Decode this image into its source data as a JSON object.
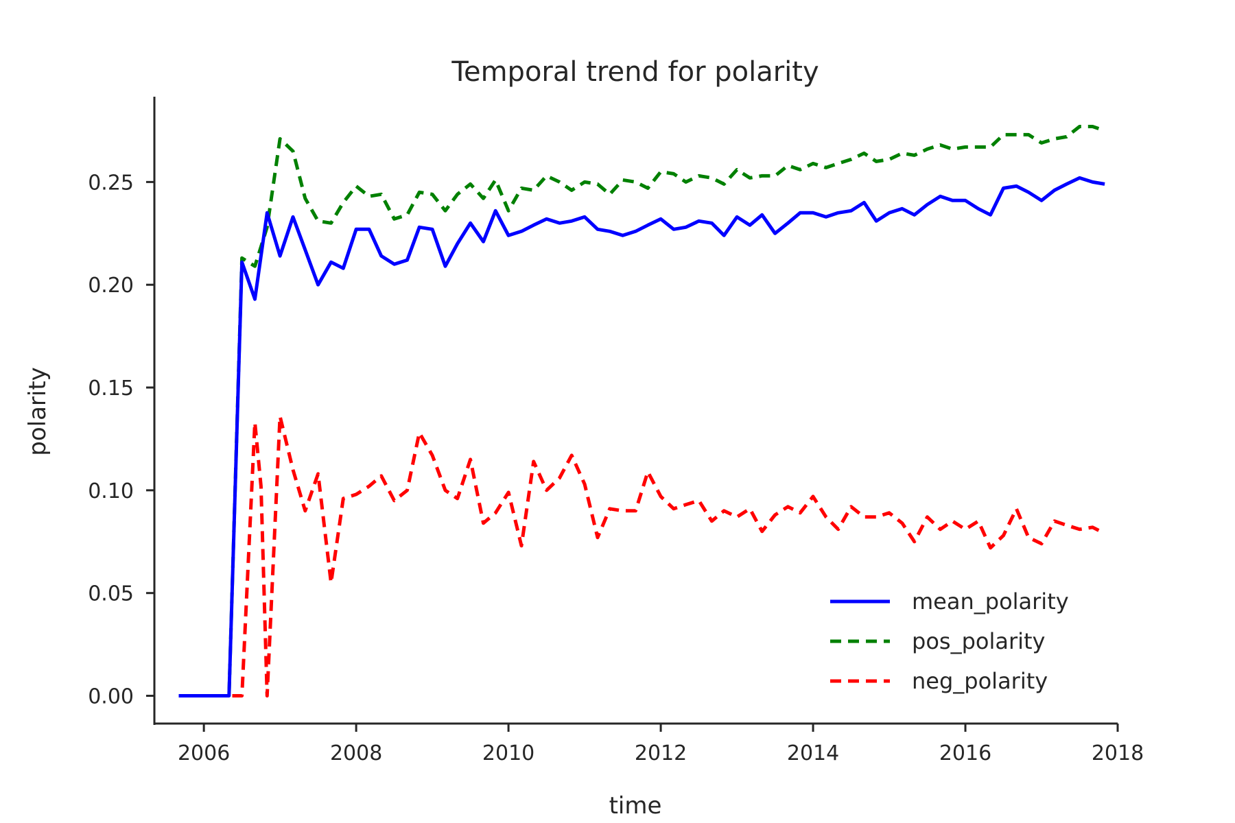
{
  "chart_data": {
    "type": "line",
    "title": "Temporal trend for polarity",
    "xlabel": "time",
    "ylabel": "polarity",
    "xlim": [
      2005.35,
      2018.0
    ],
    "ylim": [
      -0.0135,
      0.2915
    ],
    "x_ticks": [
      2006,
      2008,
      2010,
      2012,
      2014,
      2016,
      2018
    ],
    "y_ticks": [
      0.0,
      0.05,
      0.1,
      0.15,
      0.2,
      0.25
    ],
    "x_tick_labels": [
      "2006",
      "2008",
      "2010",
      "2012",
      "2014",
      "2016",
      "2018"
    ],
    "y_tick_labels": [
      "0.00",
      "0.05",
      "0.10",
      "0.15",
      "0.20",
      "0.25"
    ],
    "grid": false,
    "legend_position": "lower-right",
    "series": [
      {
        "name": "mean_polarity",
        "color": "#0000ff",
        "style": "solid",
        "points": [
          [
            2005.67,
            0.0
          ],
          [
            2005.83,
            0.0
          ],
          [
            2006.0,
            0.0
          ],
          [
            2006.17,
            0.0
          ],
          [
            2006.33,
            0.0
          ],
          [
            2006.5,
            0.211
          ],
          [
            2006.67,
            0.193
          ],
          [
            2006.83,
            0.235
          ],
          [
            2007.0,
            0.214
          ],
          [
            2007.17,
            0.233
          ],
          [
            2007.33,
            0.217
          ],
          [
            2007.5,
            0.2
          ],
          [
            2007.67,
            0.211
          ],
          [
            2007.83,
            0.208
          ],
          [
            2008.0,
            0.227
          ],
          [
            2008.17,
            0.227
          ],
          [
            2008.33,
            0.214
          ],
          [
            2008.5,
            0.21
          ],
          [
            2008.67,
            0.212
          ],
          [
            2008.83,
            0.228
          ],
          [
            2009.0,
            0.227
          ],
          [
            2009.17,
            0.209
          ],
          [
            2009.33,
            0.22
          ],
          [
            2009.5,
            0.23
          ],
          [
            2009.67,
            0.221
          ],
          [
            2009.83,
            0.236
          ],
          [
            2010.0,
            0.224
          ],
          [
            2010.17,
            0.226
          ],
          [
            2010.33,
            0.229
          ],
          [
            2010.5,
            0.232
          ],
          [
            2010.67,
            0.23
          ],
          [
            2010.83,
            0.231
          ],
          [
            2011.0,
            0.233
          ],
          [
            2011.17,
            0.227
          ],
          [
            2011.33,
            0.226
          ],
          [
            2011.5,
            0.224
          ],
          [
            2011.67,
            0.226
          ],
          [
            2011.83,
            0.229
          ],
          [
            2012.0,
            0.232
          ],
          [
            2012.17,
            0.227
          ],
          [
            2012.33,
            0.228
          ],
          [
            2012.5,
            0.231
          ],
          [
            2012.67,
            0.23
          ],
          [
            2012.83,
            0.224
          ],
          [
            2013.0,
            0.233
          ],
          [
            2013.17,
            0.229
          ],
          [
            2013.33,
            0.234
          ],
          [
            2013.5,
            0.225
          ],
          [
            2013.67,
            0.23
          ],
          [
            2013.83,
            0.235
          ],
          [
            2014.0,
            0.235
          ],
          [
            2014.17,
            0.233
          ],
          [
            2014.33,
            0.235
          ],
          [
            2014.5,
            0.236
          ],
          [
            2014.67,
            0.24
          ],
          [
            2014.83,
            0.231
          ],
          [
            2015.0,
            0.235
          ],
          [
            2015.17,
            0.237
          ],
          [
            2015.33,
            0.234
          ],
          [
            2015.5,
            0.239
          ],
          [
            2015.67,
            0.243
          ],
          [
            2015.83,
            0.241
          ],
          [
            2016.0,
            0.241
          ],
          [
            2016.17,
            0.237
          ],
          [
            2016.33,
            0.234
          ],
          [
            2016.5,
            0.247
          ],
          [
            2016.67,
            0.248
          ],
          [
            2016.83,
            0.245
          ],
          [
            2017.0,
            0.241
          ],
          [
            2017.17,
            0.246
          ],
          [
            2017.33,
            0.249
          ],
          [
            2017.5,
            0.252
          ],
          [
            2017.67,
            0.25
          ],
          [
            2017.83,
            0.249
          ]
        ]
      },
      {
        "name": "pos_polarity",
        "color": "#008000",
        "style": "dashed",
        "points": [
          [
            2005.67,
            0.0
          ],
          [
            2005.83,
            0.0
          ],
          [
            2006.0,
            0.0
          ],
          [
            2006.17,
            0.0
          ],
          [
            2006.33,
            0.0
          ],
          [
            2006.5,
            0.213
          ],
          [
            2006.67,
            0.209
          ],
          [
            2006.83,
            0.228
          ],
          [
            2007.0,
            0.271
          ],
          [
            2007.17,
            0.265
          ],
          [
            2007.33,
            0.242
          ],
          [
            2007.5,
            0.231
          ],
          [
            2007.67,
            0.23
          ],
          [
            2007.83,
            0.24
          ],
          [
            2008.0,
            0.248
          ],
          [
            2008.17,
            0.243
          ],
          [
            2008.33,
            0.244
          ],
          [
            2008.5,
            0.232
          ],
          [
            2008.67,
            0.234
          ],
          [
            2008.83,
            0.245
          ],
          [
            2009.0,
            0.244
          ],
          [
            2009.17,
            0.236
          ],
          [
            2009.33,
            0.244
          ],
          [
            2009.5,
            0.249
          ],
          [
            2009.67,
            0.242
          ],
          [
            2009.83,
            0.251
          ],
          [
            2010.0,
            0.236
          ],
          [
            2010.17,
            0.247
          ],
          [
            2010.33,
            0.246
          ],
          [
            2010.5,
            0.253
          ],
          [
            2010.67,
            0.25
          ],
          [
            2010.83,
            0.246
          ],
          [
            2011.0,
            0.25
          ],
          [
            2011.17,
            0.249
          ],
          [
            2011.33,
            0.244
          ],
          [
            2011.5,
            0.251
          ],
          [
            2011.67,
            0.25
          ],
          [
            2011.83,
            0.247
          ],
          [
            2012.0,
            0.255
          ],
          [
            2012.17,
            0.254
          ],
          [
            2012.33,
            0.25
          ],
          [
            2012.5,
            0.253
          ],
          [
            2012.67,
            0.252
          ],
          [
            2012.83,
            0.249
          ],
          [
            2013.0,
            0.256
          ],
          [
            2013.17,
            0.252
          ],
          [
            2013.33,
            0.253
          ],
          [
            2013.5,
            0.253
          ],
          [
            2013.67,
            0.258
          ],
          [
            2013.83,
            0.256
          ],
          [
            2014.0,
            0.259
          ],
          [
            2014.17,
            0.257
          ],
          [
            2014.33,
            0.259
          ],
          [
            2014.5,
            0.261
          ],
          [
            2014.67,
            0.264
          ],
          [
            2014.83,
            0.26
          ],
          [
            2015.0,
            0.261
          ],
          [
            2015.17,
            0.264
          ],
          [
            2015.33,
            0.263
          ],
          [
            2015.5,
            0.266
          ],
          [
            2015.67,
            0.268
          ],
          [
            2015.83,
            0.266
          ],
          [
            2016.0,
            0.267
          ],
          [
            2016.17,
            0.267
          ],
          [
            2016.33,
            0.267
          ],
          [
            2016.5,
            0.273
          ],
          [
            2016.67,
            0.273
          ],
          [
            2016.83,
            0.273
          ],
          [
            2017.0,
            0.269
          ],
          [
            2017.17,
            0.271
          ],
          [
            2017.33,
            0.272
          ],
          [
            2017.5,
            0.277
          ],
          [
            2017.67,
            0.277
          ],
          [
            2017.83,
            0.275
          ]
        ]
      },
      {
        "name": "neg_polarity",
        "color": "#ff0000",
        "style": "dashed",
        "points": [
          [
            2005.67,
            0.0
          ],
          [
            2005.83,
            0.0
          ],
          [
            2006.0,
            0.0
          ],
          [
            2006.17,
            0.0
          ],
          [
            2006.33,
            0.0
          ],
          [
            2006.5,
            0.0
          ],
          [
            2006.67,
            0.133
          ],
          [
            2006.75,
            0.102
          ],
          [
            2006.83,
            0.0
          ],
          [
            2007.0,
            0.136
          ],
          [
            2007.17,
            0.11
          ],
          [
            2007.33,
            0.09
          ],
          [
            2007.5,
            0.108
          ],
          [
            2007.67,
            0.055
          ],
          [
            2007.83,
            0.096
          ],
          [
            2008.0,
            0.098
          ],
          [
            2008.17,
            0.102
          ],
          [
            2008.33,
            0.107
          ],
          [
            2008.5,
            0.095
          ],
          [
            2008.67,
            0.1
          ],
          [
            2008.83,
            0.128
          ],
          [
            2009.0,
            0.117
          ],
          [
            2009.17,
            0.1
          ],
          [
            2009.33,
            0.096
          ],
          [
            2009.5,
            0.115
          ],
          [
            2009.67,
            0.084
          ],
          [
            2009.83,
            0.089
          ],
          [
            2010.0,
            0.099
          ],
          [
            2010.17,
            0.073
          ],
          [
            2010.33,
            0.114
          ],
          [
            2010.5,
            0.1
          ],
          [
            2010.67,
            0.106
          ],
          [
            2010.83,
            0.117
          ],
          [
            2011.0,
            0.103
          ],
          [
            2011.17,
            0.077
          ],
          [
            2011.33,
            0.091
          ],
          [
            2011.5,
            0.09
          ],
          [
            2011.67,
            0.09
          ],
          [
            2011.83,
            0.109
          ],
          [
            2012.0,
            0.097
          ],
          [
            2012.17,
            0.091
          ],
          [
            2012.33,
            0.093
          ],
          [
            2012.5,
            0.095
          ],
          [
            2012.67,
            0.085
          ],
          [
            2012.83,
            0.09
          ],
          [
            2013.0,
            0.087
          ],
          [
            2013.17,
            0.091
          ],
          [
            2013.33,
            0.08
          ],
          [
            2013.5,
            0.088
          ],
          [
            2013.67,
            0.092
          ],
          [
            2013.83,
            0.089
          ],
          [
            2014.0,
            0.097
          ],
          [
            2014.17,
            0.087
          ],
          [
            2014.33,
            0.081
          ],
          [
            2014.5,
            0.092
          ],
          [
            2014.67,
            0.087
          ],
          [
            2014.83,
            0.087
          ],
          [
            2015.0,
            0.089
          ],
          [
            2015.17,
            0.084
          ],
          [
            2015.33,
            0.075
          ],
          [
            2015.5,
            0.087
          ],
          [
            2015.67,
            0.081
          ],
          [
            2015.83,
            0.085
          ],
          [
            2016.0,
            0.081
          ],
          [
            2016.17,
            0.085
          ],
          [
            2016.33,
            0.072
          ],
          [
            2016.5,
            0.078
          ],
          [
            2016.67,
            0.091
          ],
          [
            2016.83,
            0.077
          ],
          [
            2017.0,
            0.074
          ],
          [
            2017.17,
            0.085
          ],
          [
            2017.33,
            0.083
          ],
          [
            2017.5,
            0.081
          ],
          [
            2017.67,
            0.082
          ],
          [
            2017.83,
            0.079
          ]
        ]
      }
    ]
  }
}
